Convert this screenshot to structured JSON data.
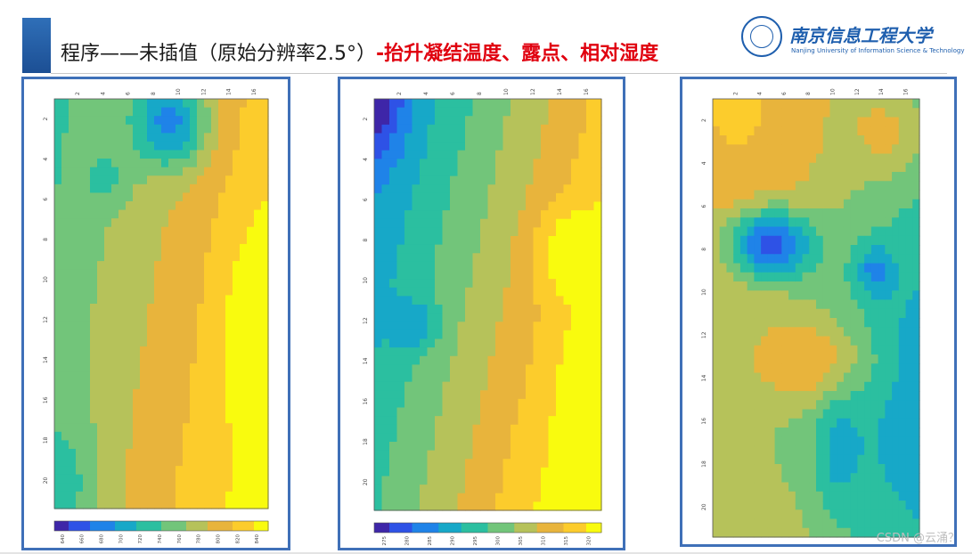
{
  "header": {
    "title_black": "程序——未插值（原始分辨率2.5°）",
    "title_red": "-抬升凝结温度、露点、相对湿度"
  },
  "logo": {
    "chinese_name": "南京信息工程大学",
    "english_name": "Nanjing University of Information Science & Technology"
  },
  "panels": [
    {
      "name": "lifting-condensation-temperature",
      "x_ticks": [
        "2",
        "4",
        "6",
        "8",
        "10",
        "12",
        "14",
        "16"
      ],
      "y_ticks": [
        "2",
        "4",
        "6",
        "8",
        "10",
        "12",
        "14",
        "16",
        "18",
        "20"
      ],
      "colorbar_ticks": [
        "640",
        "660",
        "680",
        "700",
        "720",
        "740",
        "760",
        "780",
        "800",
        "820",
        "840"
      ]
    },
    {
      "name": "dew-point",
      "x_ticks": [
        "2",
        "4",
        "6",
        "8",
        "10",
        "12",
        "14",
        "16"
      ],
      "y_ticks": [
        "2",
        "4",
        "6",
        "8",
        "10",
        "12",
        "14",
        "16",
        "18",
        "20"
      ],
      "colorbar_ticks": [
        "275",
        "280",
        "285",
        "290",
        "295",
        "300",
        "305",
        "310",
        "315",
        "320"
      ]
    },
    {
      "name": "relative-humidity",
      "x_ticks": [
        "2",
        "4",
        "6",
        "8",
        "10",
        "12",
        "14",
        "16"
      ],
      "y_ticks": [
        "2",
        "4",
        "6",
        "8",
        "10",
        "12",
        "14",
        "16",
        "18",
        "20"
      ],
      "colorbar_ticks": []
    }
  ],
  "colors": {
    "accent": "#3f70b8",
    "title_red": "#e0000f",
    "colormap": [
      "#3e26a8",
      "#2e52e6",
      "#1f83e8",
      "#17a8c8",
      "#2bbfa0",
      "#72c57a",
      "#b6c25a",
      "#e8b43c",
      "#fccc2c",
      "#f9fb0e"
    ]
  },
  "watermark": "CSDN @云涌？"
}
